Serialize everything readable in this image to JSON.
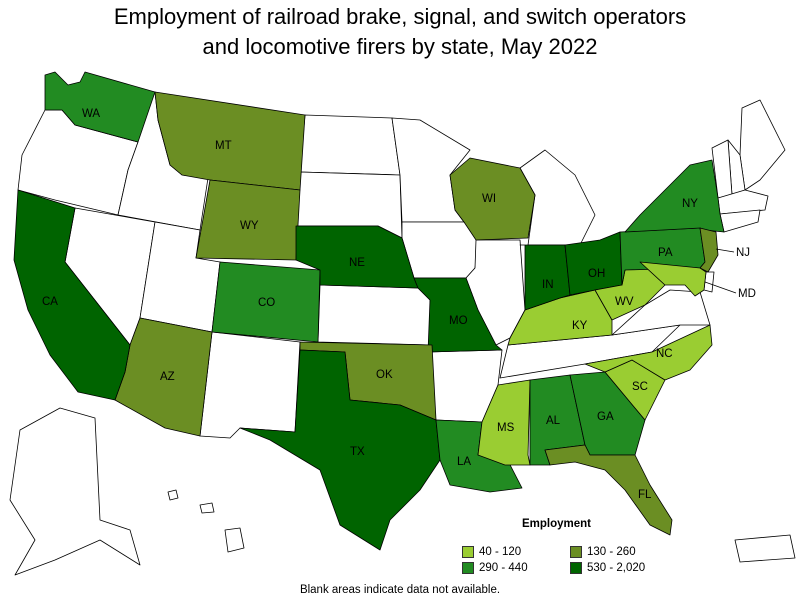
{
  "title_line1": "Employment of railroad brake, signal, and switch operators",
  "title_line2": "and locomotive firers by state, May 2022",
  "legend": {
    "title": "Employment",
    "items": [
      {
        "label": "40 - 120",
        "color": "#9acd32"
      },
      {
        "label": "130 - 260",
        "color": "#6b8e23"
      },
      {
        "label": "290 - 440",
        "color": "#228b22"
      },
      {
        "label": "530 - 2,020",
        "color": "#006400"
      }
    ]
  },
  "footnote": "Blank areas indicate data not available.",
  "states": {
    "WA": {
      "label": "WA",
      "bin": 2
    },
    "MT": {
      "label": "MT",
      "bin": 1
    },
    "WY": {
      "label": "WY",
      "bin": 1
    },
    "CO": {
      "label": "CO",
      "bin": 2
    },
    "AZ": {
      "label": "AZ",
      "bin": 1
    },
    "CA": {
      "label": "CA",
      "bin": 3
    },
    "NE": {
      "label": "NE",
      "bin": 3
    },
    "MO": {
      "label": "MO",
      "bin": 3
    },
    "OK": {
      "label": "OK",
      "bin": 1
    },
    "TX": {
      "label": "TX",
      "bin": 3
    },
    "LA": {
      "label": "LA",
      "bin": 2
    },
    "MS": {
      "label": "MS",
      "bin": 0
    },
    "AL": {
      "label": "AL",
      "bin": 2
    },
    "GA": {
      "label": "GA",
      "bin": 2
    },
    "FL": {
      "label": "FL",
      "bin": 1
    },
    "SC": {
      "label": "SC",
      "bin": 0
    },
    "NC": {
      "label": "NC",
      "bin": 0
    },
    "KY": {
      "label": "KY",
      "bin": 0
    },
    "IN": {
      "label": "IN",
      "bin": 3
    },
    "OH": {
      "label": "OH",
      "bin": 3
    },
    "WV": {
      "label": "WV",
      "bin": 0
    },
    "WI": {
      "label": "WI",
      "bin": 1
    },
    "PA": {
      "label": "PA",
      "bin": 2
    },
    "NY": {
      "label": "NY",
      "bin": 2
    },
    "NJ": {
      "label": "NJ",
      "bin": 1
    },
    "MD": {
      "label": "MD",
      "bin": 0
    }
  }
}
